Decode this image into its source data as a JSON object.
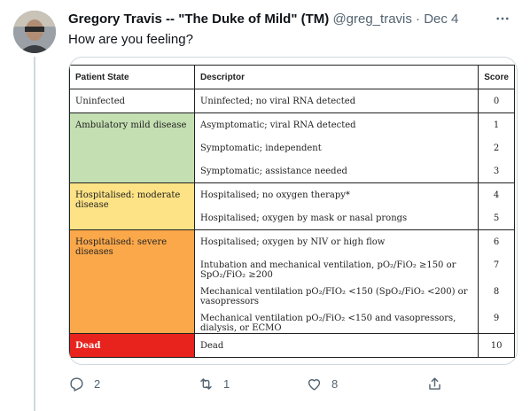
{
  "tweet": {
    "display_name": "Gregory Travis -- \"The Duke of Mild\" (TM)",
    "handle": "@greg_travis",
    "separator": "·",
    "date": "Dec 4",
    "text": "How are you feeling?"
  },
  "table": {
    "headers": [
      "Patient State",
      "Descriptor",
      "Score"
    ],
    "groups": [
      {
        "state": "Uninfected",
        "color": "#ffffff",
        "text_color": "#222222",
        "rows": [
          {
            "descriptor": "Uninfected;  no viral RNA detected",
            "score": "0"
          }
        ]
      },
      {
        "state": "Ambulatory mild disease",
        "color": "#c4dfb2",
        "text_color": "#222222",
        "rows": [
          {
            "descriptor": "Asymptomatic; viral RNA detected",
            "score": "1"
          },
          {
            "descriptor": "Symptomatic; independent",
            "score": "2"
          },
          {
            "descriptor": "Symptomatic; assistance needed",
            "score": "3"
          }
        ]
      },
      {
        "state": "Hospitalised: moderate disease",
        "color": "#fde385",
        "text_color": "#222222",
        "rows": [
          {
            "descriptor": "Hospitalised; no oxygen therapy*",
            "score": "4"
          },
          {
            "descriptor": "Hospitalised; oxygen by mask or nasal prongs",
            "score": "5"
          }
        ]
      },
      {
        "state": "Hospitalised: severe diseases",
        "color": "#fba84a",
        "text_color": "#222222",
        "rows": [
          {
            "descriptor": "Hospitalised; oxygen by NIV or high flow",
            "score": "6"
          },
          {
            "descriptor": "Intubation and mechanical ventilation, pO₂/FiO₂ ≥150 or SpO₂/FiO₂ ≥200",
            "score": "7"
          },
          {
            "descriptor": "Mechanical ventilation pO₂/FIO₂ <150 (SpO₂/FiO₂ <200) or vasopressors",
            "score": "8"
          },
          {
            "descriptor": "Mechanical ventilation pO₂/FiO₂ <150 and vasopressors, dialysis, or ECMO",
            "score": "9"
          }
        ]
      },
      {
        "state": "Dead",
        "color": "#e8221c",
        "text_color": "#ffffff",
        "rows": [
          {
            "descriptor": "Dead",
            "score": "10"
          }
        ]
      }
    ]
  },
  "actions": {
    "reply_count": "2",
    "retweet_count": "1",
    "like_count": "8"
  },
  "icons": {
    "more": "more-icon",
    "reply": "reply-icon",
    "retweet": "retweet-icon",
    "like": "like-icon",
    "share": "share-icon"
  }
}
